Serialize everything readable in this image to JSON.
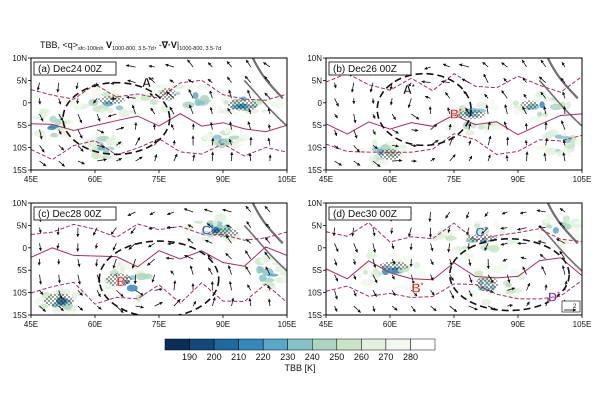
{
  "figure": {
    "title": {
      "p1": "TBB, <q>",
      "p1_sub": "sfc-100inh",
      "p2_bold": "V",
      "p2_sub": "1000-800, 3.5-7d",
      "p3": ", -",
      "p3_bold": "∇·V",
      "p3_close": "|",
      "p3_sub": "1000-800, 3.5-7d"
    },
    "lat_ticks": [
      "10N",
      "5N",
      "0",
      "5S",
      "10S",
      "15S"
    ],
    "lon_ticks": [
      "45E",
      "60E",
      "75E",
      "90E",
      "105E"
    ],
    "colors": {
      "contour": "#a8305a",
      "coast": "#707070",
      "circle": "#111111",
      "letter_red": "#e02020",
      "letter_blue": "#2a56d0",
      "letter_purple": "#7a30b0",
      "letter_black": "#111111"
    },
    "panels": [
      {
        "label": "(a) Dec24 00Z",
        "circle": {
          "lon": 65,
          "lat": -3.5,
          "rlon": 12.5,
          "rlat": 8
        },
        "letters": [
          {
            "text": "A",
            "lon": 71,
            "lat": 3.5,
            "color": "letter_black"
          }
        ],
        "tbb_clusters": [
          {
            "lon": 64,
            "lat": 0,
            "rlon": 10,
            "rlat": 3
          },
          {
            "lon": 80,
            "lat": 1,
            "rlon": 12,
            "rlat": 3
          },
          {
            "lon": 95,
            "lat": 0,
            "rlon": 9,
            "rlat": 3
          },
          {
            "lon": 62,
            "lat": -10,
            "rlon": 4,
            "rlat": 3
          },
          {
            "lon": 90,
            "lat": -8,
            "rlon": 5,
            "rlat": 2.5
          },
          {
            "lon": 50,
            "lat": -5,
            "rlon": 4,
            "rlat": 4
          }
        ]
      },
      {
        "label": "(b) Dec26 00Z",
        "circle": {
          "lon": 68,
          "lat": -1.5,
          "rlon": 11,
          "rlat": 8
        },
        "letters": [
          {
            "text": "A",
            "lon": 63,
            "lat": 2,
            "color": "letter_black"
          },
          {
            "text": "B",
            "lon": 74,
            "lat": -3.5,
            "color": "letter_red"
          }
        ],
        "tbb_clusters": [
          {
            "lon": 80,
            "lat": -3,
            "rlon": 8,
            "rlat": 4
          },
          {
            "lon": 95,
            "lat": -1,
            "rlon": 8,
            "rlat": 3
          },
          {
            "lon": 58,
            "lat": -11,
            "rlon": 6,
            "rlat": 2.5
          },
          {
            "lon": 100,
            "lat": -9,
            "rlon": 5,
            "rlat": 3
          }
        ]
      },
      {
        "label": "(c) Dec28 00Z",
        "circle": {
          "lon": 75,
          "lat": -7,
          "rlon": 14,
          "rlat": 8.5
        },
        "letters": [
          {
            "text": "C",
            "lon": 85,
            "lat": 3,
            "color": "letter_blue"
          },
          {
            "text": "B",
            "lon": 65,
            "lat": -8.5,
            "color": "letter_red"
          }
        ],
        "tbb_clusters": [
          {
            "lon": 68,
            "lat": -8,
            "rlon": 7,
            "rlat": 5
          },
          {
            "lon": 88,
            "lat": 4,
            "rlon": 7,
            "rlat": 3
          },
          {
            "lon": 52,
            "lat": -12,
            "rlon": 6,
            "rlat": 3
          },
          {
            "lon": 100,
            "lat": -6,
            "rlon": 5,
            "rlat": 4
          }
        ]
      },
      {
        "label": "(d) Dec30 00Z",
        "circle": {
          "lon": 88,
          "lat": -6,
          "rlon": 14,
          "rlat": 8
        },
        "letters": [
          {
            "text": "C",
            "lon": 80,
            "lat": 2.5,
            "color": "letter_blue"
          },
          {
            "text": "B",
            "lon": 65,
            "lat": -10,
            "color": "letter_red"
          },
          {
            "text": "D",
            "lon": 97,
            "lat": -12,
            "color": "letter_purple"
          }
        ],
        "tbb_clusters": [
          {
            "lon": 80,
            "lat": 2,
            "rlon": 10,
            "rlat": 4
          },
          {
            "lon": 60,
            "lat": -5,
            "rlon": 8,
            "rlat": 4
          },
          {
            "lon": 85,
            "lat": -8,
            "rlon": 7,
            "rlat": 5
          },
          {
            "lon": 100,
            "lat": 4,
            "rlon": 5,
            "rlat": 4
          }
        ]
      }
    ],
    "colorbar": {
      "ticks": [
        "190",
        "200",
        "210",
        "220",
        "230",
        "240",
        "250",
        "260",
        "270",
        "280"
      ],
      "colors": [
        "#0a2e57",
        "#12497a",
        "#1d6a9e",
        "#3389bc",
        "#58a8c9",
        "#86c3c9",
        "#acd5c2",
        "#c9e5c6",
        "#e2f1df",
        "#f2f8f0",
        "#ffffff"
      ],
      "label": "TBB [K]"
    },
    "ref_vector_label": "2"
  }
}
